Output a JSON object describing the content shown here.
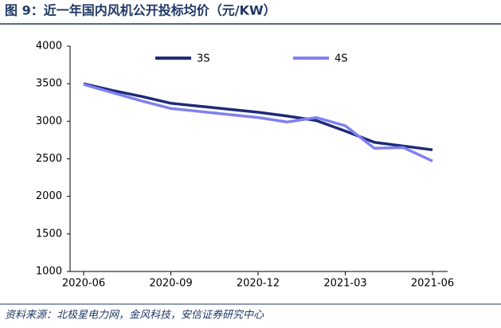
{
  "title": "图 9：近一年国内风机公开投标均价（元/KW）",
  "source": "资料来源：北极星电力网，金风科技，安信证券研究中心",
  "chart_data": {
    "type": "line",
    "x": [
      "2020-06",
      "2020-07",
      "2020-08",
      "2020-09",
      "2020-10",
      "2020-11",
      "2020-12",
      "2021-01",
      "2021-02",
      "2021-03",
      "2021-04",
      "2021-05",
      "2021-06"
    ],
    "xticks": [
      "2020-06",
      "2020-09",
      "2020-12",
      "2021-03",
      "2021-06"
    ],
    "series": [
      {
        "name": "3S",
        "color": "#1f2a78",
        "values": [
          3500,
          3410,
          3330,
          3240,
          3200,
          3160,
          3120,
          3070,
          3010,
          2870,
          2720,
          2670,
          2620
        ]
      },
      {
        "name": "4S",
        "color": "#8080f0",
        "values": [
          3490,
          3380,
          3270,
          3170,
          3130,
          3090,
          3050,
          2990,
          3050,
          2940,
          2640,
          2650,
          2470
        ]
      }
    ],
    "ylim": [
      1000,
      4000
    ],
    "yticks": [
      1000,
      1500,
      2000,
      2500,
      3000,
      3500,
      4000
    ],
    "legend": "top",
    "grid": false
  }
}
